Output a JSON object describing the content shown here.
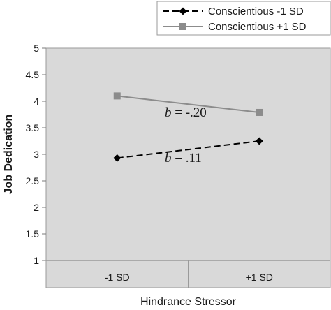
{
  "chart_data": {
    "type": "line",
    "categories": [
      "-1 SD",
      "+1 SD"
    ],
    "series": [
      {
        "name": "Conscientious -1 SD",
        "values": [
          2.93,
          3.25
        ],
        "color": "#000000",
        "line_style": "dashed",
        "marker": "diamond"
      },
      {
        "name": "Conscientious +1 SD",
        "values": [
          4.1,
          3.79
        ],
        "color": "#8c8c8c",
        "line_style": "solid",
        "marker": "square"
      }
    ],
    "xlabel": "Hindrance Stressor",
    "ylabel": "Job Dedication",
    "ylim": [
      1,
      5
    ],
    "yticks": [
      "1",
      "1.5",
      "2",
      "2.5",
      "3",
      "3.5",
      "4",
      "4.5",
      "5"
    ],
    "grid": false,
    "legend_position": "top-right",
    "plot_background": "#d9d9d9",
    "annotations": [
      {
        "prefix": "b",
        "text": " = -.20",
        "series": 1
      },
      {
        "prefix": "b",
        "text": " = .11",
        "series": 0
      }
    ]
  }
}
